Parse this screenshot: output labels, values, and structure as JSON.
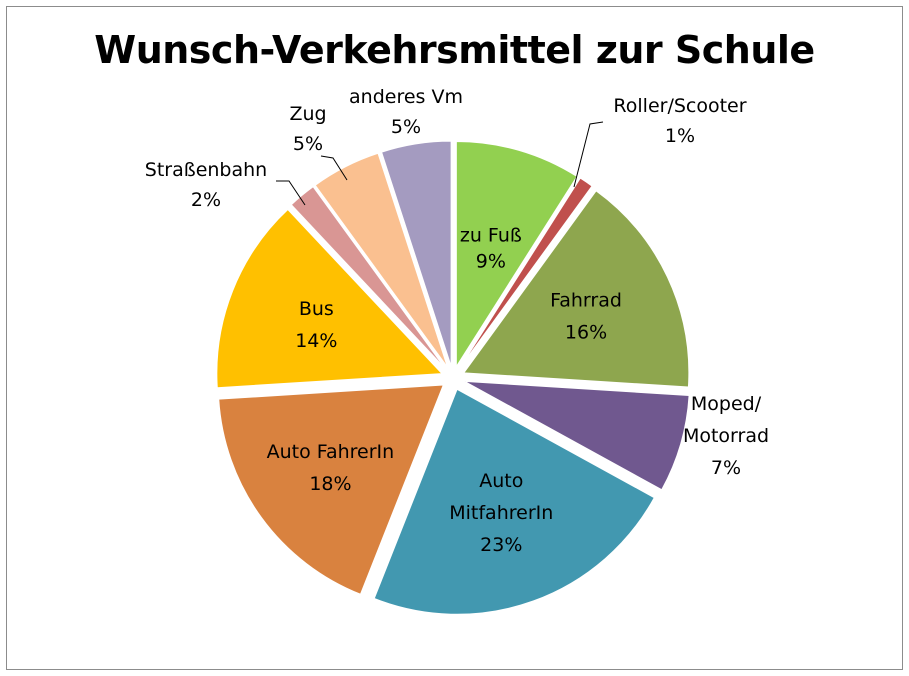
{
  "chart_data": {
    "type": "pie",
    "title": "Wunsch-Verkehrsmittel zur Schule",
    "exploded": true,
    "slices": [
      {
        "label": [
          "zu Fuß"
        ],
        "value": 9,
        "value_label": "9%",
        "color": "#92d050"
      },
      {
        "label": [
          "Roller/Scooter"
        ],
        "value": 1,
        "value_label": "1%",
        "color": "#c0504d"
      },
      {
        "label": [
          "Fahrrad"
        ],
        "value": 16,
        "value_label": "16%",
        "color": "#8ea64e"
      },
      {
        "label": [
          "Moped/",
          "Motorrad"
        ],
        "value": 7,
        "value_label": "7%",
        "color": "#70588f"
      },
      {
        "label": [
          "Auto",
          "MitfahrerIn"
        ],
        "value": 23,
        "value_label": "23%",
        "color": "#4298b0"
      },
      {
        "label": [
          "Auto FahrerIn"
        ],
        "value": 18,
        "value_label": "18%",
        "color": "#d9823f"
      },
      {
        "label": [
          "Bus"
        ],
        "value": 14,
        "value_label": "14%",
        "color": "#ffc000"
      },
      {
        "label": [
          "Straßenbahn"
        ],
        "value": 2,
        "value_label": "2%",
        "color": "#d99694"
      },
      {
        "label": [
          "Zug"
        ],
        "value": 5,
        "value_label": "5%",
        "color": "#fac090"
      },
      {
        "label": [
          "anderes Vm"
        ],
        "value": 5,
        "value_label": "5%",
        "color": "#a49bc0"
      }
    ]
  }
}
